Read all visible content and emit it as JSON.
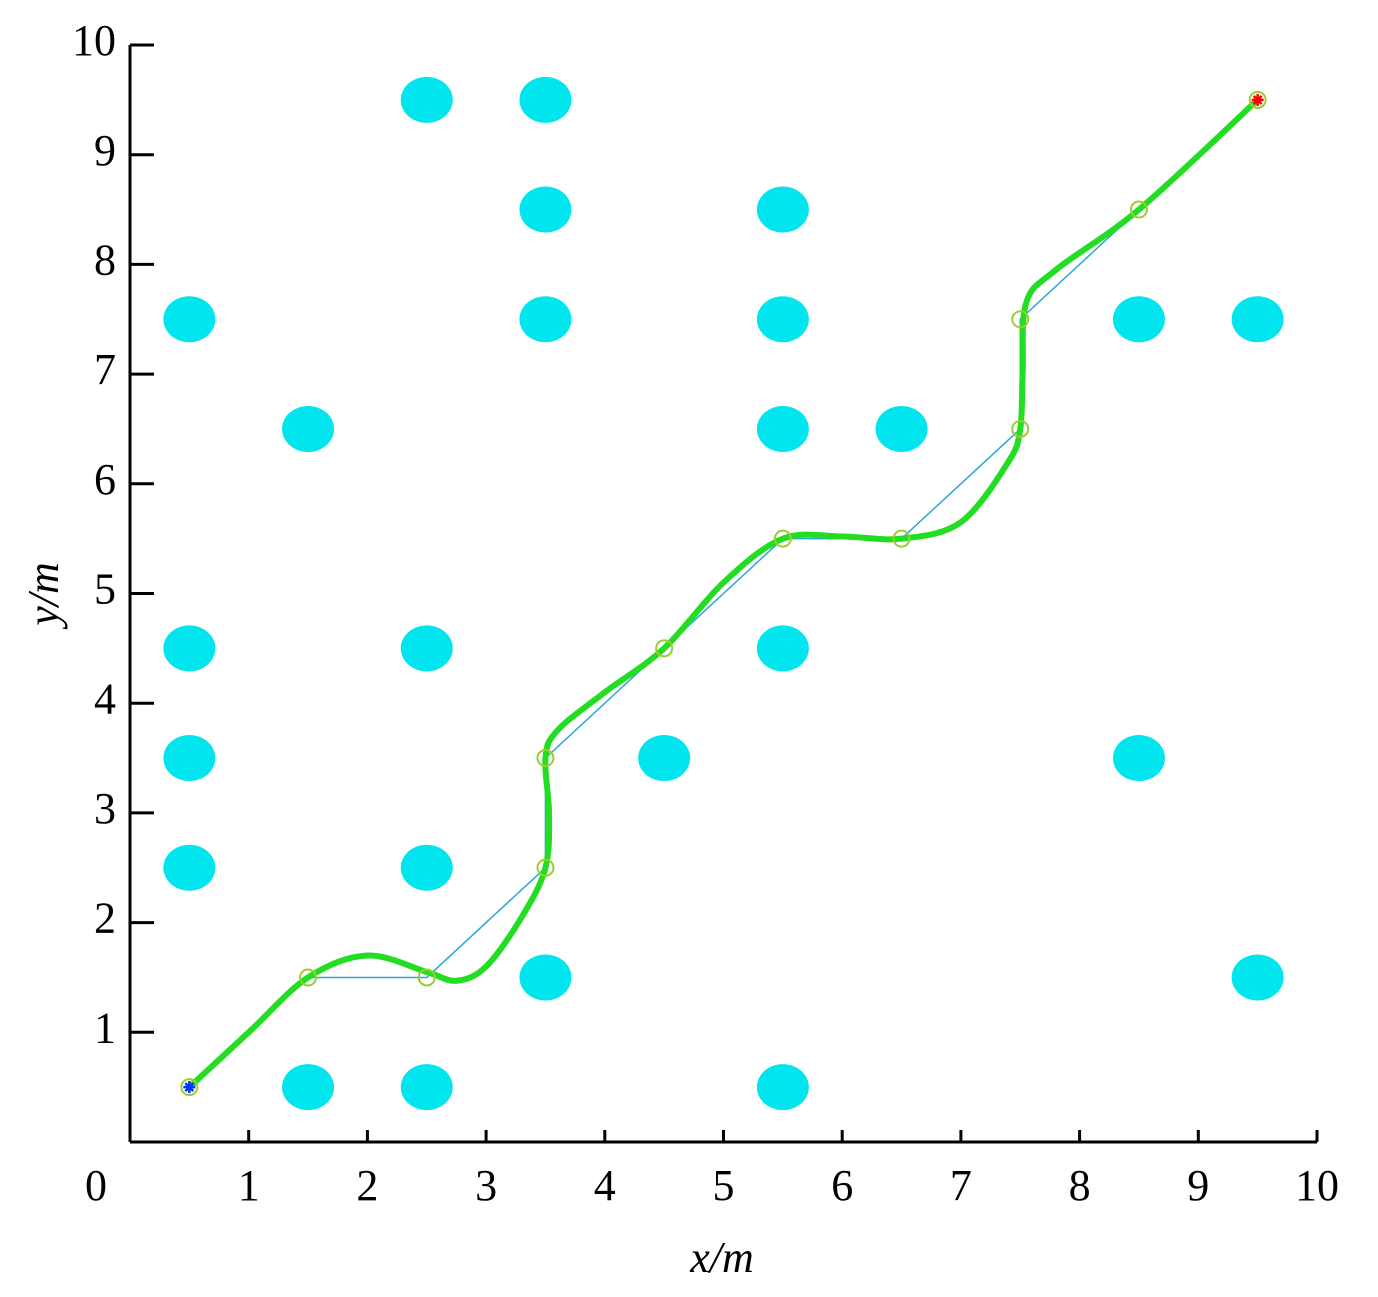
{
  "chart_data": {
    "type": "scatter",
    "xlabel": "x/m",
    "ylabel": "y/m",
    "xlim": [
      0,
      10
    ],
    "ylim": [
      0,
      10
    ],
    "xticks": [
      0,
      1,
      2,
      3,
      4,
      5,
      6,
      7,
      8,
      9,
      10
    ],
    "yticks": [
      1,
      2,
      3,
      4,
      5,
      6,
      7,
      8,
      9,
      10
    ],
    "obstacles": {
      "color": "#00e5ee",
      "x": [
        2.5,
        3.5,
        3.5,
        5.5,
        0.5,
        3.5,
        5.5,
        8.5,
        9.5,
        1.5,
        5.5,
        6.5,
        0.5,
        2.5,
        5.5,
        0.5,
        4.5,
        8.5,
        0.5,
        2.5,
        3.5,
        9.5,
        1.5,
        2.5,
        5.5
      ],
      "y": [
        9.5,
        9.5,
        8.5,
        8.5,
        7.5,
        7.5,
        7.5,
        7.5,
        7.5,
        6.5,
        6.5,
        6.5,
        4.5,
        4.5,
        4.5,
        3.5,
        3.5,
        3.5,
        2.5,
        2.5,
        1.5,
        1.5,
        0.5,
        0.5,
        0.5
      ]
    },
    "waypoints": {
      "color": "#9acd32",
      "line_color": "#2aa7d8",
      "x": [
        0.5,
        1.5,
        2.5,
        3.5,
        3.5,
        4.5,
        5.5,
        6.5,
        7.5,
        7.5,
        8.5,
        9.5
      ],
      "y": [
        0.5,
        1.5,
        1.5,
        2.5,
        3.5,
        4.5,
        5.5,
        5.5,
        6.5,
        7.5,
        8.5,
        9.5
      ]
    },
    "path": {
      "color": "#22dd22",
      "x": [
        0.5,
        1.0,
        1.5,
        2.0,
        2.5,
        2.75,
        3.0,
        3.3,
        3.5,
        3.53,
        3.5,
        3.6,
        4.0,
        4.5,
        5.0,
        5.5,
        6.0,
        6.5,
        7.0,
        7.4,
        7.5,
        7.52,
        7.55,
        7.8,
        8.5,
        9.5
      ],
      "y": [
        0.5,
        1.0,
        1.5,
        1.7,
        1.55,
        1.47,
        1.6,
        2.05,
        2.5,
        3.0,
        3.5,
        3.75,
        4.1,
        4.5,
        5.1,
        5.5,
        5.52,
        5.5,
        5.65,
        6.2,
        6.5,
        7.0,
        7.65,
        7.95,
        8.5,
        9.5
      ]
    },
    "start_color": "#0033ff",
    "goal_color": "#ff0000"
  }
}
